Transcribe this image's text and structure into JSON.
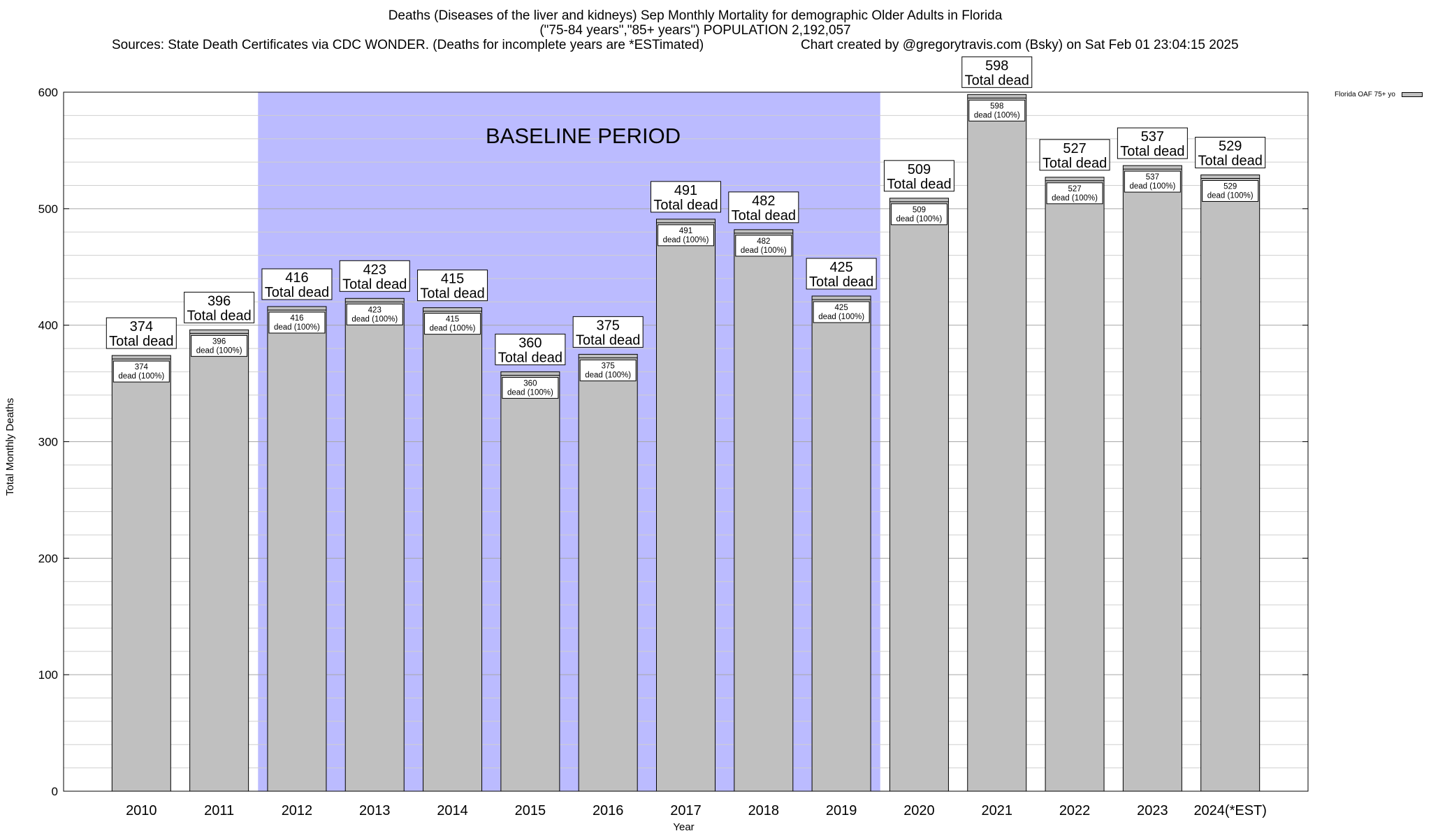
{
  "chart_data": {
    "type": "bar",
    "title": "Deaths (Diseases of the liver and kidneys) Sep Monthly Mortality for demographic Older Adults in Florida",
    "subtitle": "(\"75-84 years\",\"85+ years\") POPULATION 2,192,057",
    "source_note": "Sources: State Death Certificates via CDC WONDER. (Deaths for incomplete years are *ESTimated)",
    "credit": "Chart created by @gregorytravis.com (Bsky) on Sat Feb 01 23:04:15 2025",
    "xlabel": "Year",
    "ylabel": "Total Monthly Deaths",
    "ylim": [
      0,
      600
    ],
    "yticks": [
      0,
      100,
      200,
      300,
      400,
      500,
      600
    ],
    "grid": true,
    "legend_position": "top-right",
    "bar_color": "#c0c0c0",
    "baseline_color": "#bbbbff",
    "baseline_label": "BASELINE PERIOD",
    "baseline_range": [
      "2012",
      "2019"
    ],
    "categories": [
      "2010",
      "2011",
      "2012",
      "2013",
      "2014",
      "2015",
      "2016",
      "2017",
      "2018",
      "2019",
      "2020",
      "2021",
      "2022",
      "2023",
      "2024(*EST)"
    ],
    "series": [
      {
        "name": "Florida OAF 75+ yo",
        "values": [
          374,
          396,
          416,
          423,
          415,
          360,
          375,
          491,
          482,
          425,
          509,
          598,
          527,
          537,
          529
        ]
      }
    ],
    "total_label": "Total dead",
    "inner_label": "dead (100%)"
  }
}
